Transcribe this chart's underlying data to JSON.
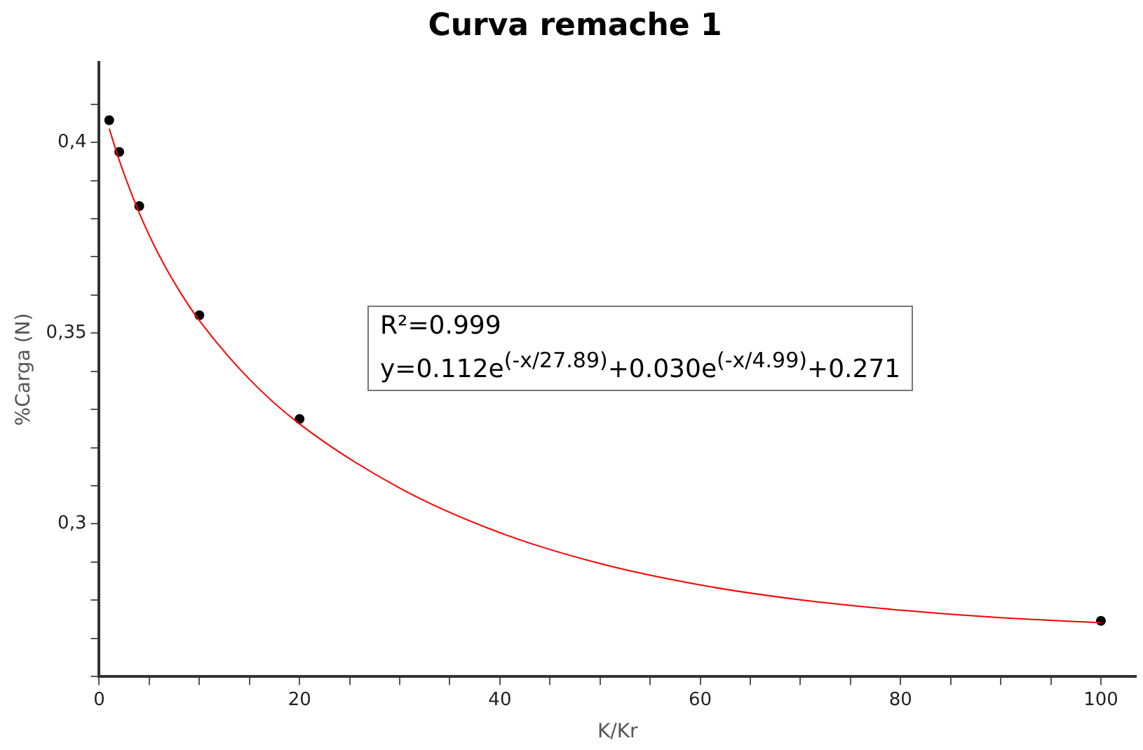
{
  "chart_data": {
    "type": "scatter",
    "title": "Curva remache 1",
    "xlabel": "K/Kr",
    "ylabel": "%Carga (N)",
    "xlim": [
      0,
      103.5
    ],
    "ylim": [
      0.26,
      0.421
    ],
    "xticks": [
      0,
      {
        "value": 5,
        "label": null
      },
      {
        "value": 10,
        "label": null
      },
      {
        "value": 15,
        "label": null
      },
      20,
      {
        "value": 25,
        "label": null
      },
      {
        "value": 30,
        "label": null
      },
      {
        "value": 35,
        "label": null
      },
      40,
      {
        "value": 45,
        "label": null
      },
      {
        "value": 50,
        "label": null
      },
      {
        "value": 55,
        "label": null
      },
      60,
      {
        "value": 65,
        "label": null
      },
      {
        "value": 70,
        "label": null
      },
      {
        "value": 75,
        "label": null
      },
      80,
      {
        "value": 85,
        "label": null
      },
      {
        "value": 90,
        "label": null
      },
      {
        "value": 95,
        "label": null
      },
      100
    ],
    "yticks": [
      {
        "value": 0.26,
        "label": null
      },
      {
        "value": 0.27,
        "label": null
      },
      {
        "value": 0.28,
        "label": null
      },
      {
        "value": 0.29,
        "label": null
      },
      {
        "value": 0.3,
        "label": "0,3"
      },
      {
        "value": 0.31,
        "label": null
      },
      {
        "value": 0.32,
        "label": null
      },
      {
        "value": 0.33,
        "label": null
      },
      {
        "value": 0.34,
        "label": null
      },
      {
        "value": 0.35,
        "label": "0,35"
      },
      {
        "value": 0.36,
        "label": null
      },
      {
        "value": 0.37,
        "label": null
      },
      {
        "value": 0.38,
        "label": null
      },
      {
        "value": 0.39,
        "label": null
      },
      {
        "value": 0.4,
        "label": "0,4"
      },
      {
        "value": 0.41,
        "label": null
      }
    ],
    "grid": false,
    "legend": false,
    "series": [
      {
        "type": "line",
        "color": "#ff0000",
        "marker": "none",
        "line_style": "solid",
        "x": [
          1,
          2,
          4,
          6,
          8,
          10,
          15,
          20,
          30,
          40,
          50,
          60,
          70,
          80,
          90,
          100
        ],
        "values": [
          0.4036,
          0.3953,
          0.3815,
          0.3703,
          0.3611,
          0.3533,
          0.3379,
          0.3262,
          0.3094,
          0.2977,
          0.2896,
          0.284,
          0.2801,
          0.2774,
          0.2754,
          0.2741
        ]
      },
      {
        "color": "#000000",
        "marker": "circle",
        "x": [
          1,
          2,
          4,
          10,
          20,
          100
        ],
        "values": [
          0.4058,
          0.3975,
          0.3833,
          0.3547,
          0.3275,
          0.2746
        ]
      }
    ],
    "annotations": [
      "R²=0.999",
      "y=0.112e$^{(-x/27.89)}$+0.030e$^{(-x/4.99)}$+0.271"
    ]
  }
}
